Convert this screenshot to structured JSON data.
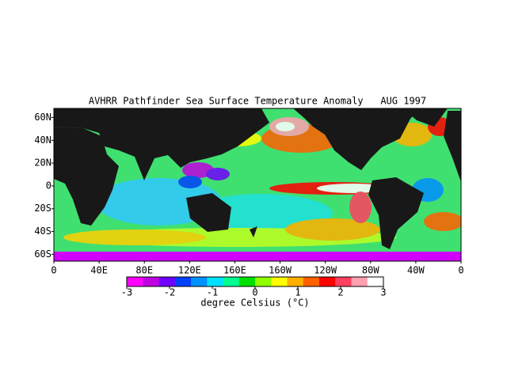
{
  "title": "AVHRR Pathfinder Sea Surface Temperature Anomaly   AUG 1997",
  "map": {
    "lonlim": [
      0,
      360
    ],
    "latlim": [
      -66,
      68
    ],
    "lat_ticks": [
      {
        "value": 60,
        "label": "60N"
      },
      {
        "value": 40,
        "label": "40N"
      },
      {
        "value": 20,
        "label": "20N"
      },
      {
        "value": 0,
        "label": "0"
      },
      {
        "value": -20,
        "label": "20S"
      },
      {
        "value": -40,
        "label": "40S"
      },
      {
        "value": -60,
        "label": "60S"
      }
    ],
    "lon_ticks": [
      {
        "value": 0,
        "label": "0"
      },
      {
        "value": 40,
        "label": "40E"
      },
      {
        "value": 80,
        "label": "80E"
      },
      {
        "value": 120,
        "label": "120E"
      },
      {
        "value": 160,
        "label": "160E"
      },
      {
        "value": 200,
        "label": "160W"
      },
      {
        "value": 240,
        "label": "120W"
      },
      {
        "value": 280,
        "label": "80W"
      },
      {
        "value": 320,
        "label": "40W"
      },
      {
        "value": 360,
        "label": "0"
      }
    ]
  },
  "colorbar": {
    "lim": [
      -3,
      3
    ],
    "ticks": [
      -3,
      -2,
      -1,
      0,
      1,
      2,
      3
    ],
    "label": "degree Celsius (°C)",
    "colors": [
      "#ff00ff",
      "#c000e0",
      "#7000ff",
      "#0040ff",
      "#0090ff",
      "#00e0ff",
      "#00ff90",
      "#00e000",
      "#90ff00",
      "#ffff00",
      "#ffb000",
      "#ff6000",
      "#ff0000",
      "#ff4060",
      "#ffa0b0",
      "#ffffff"
    ]
  }
}
